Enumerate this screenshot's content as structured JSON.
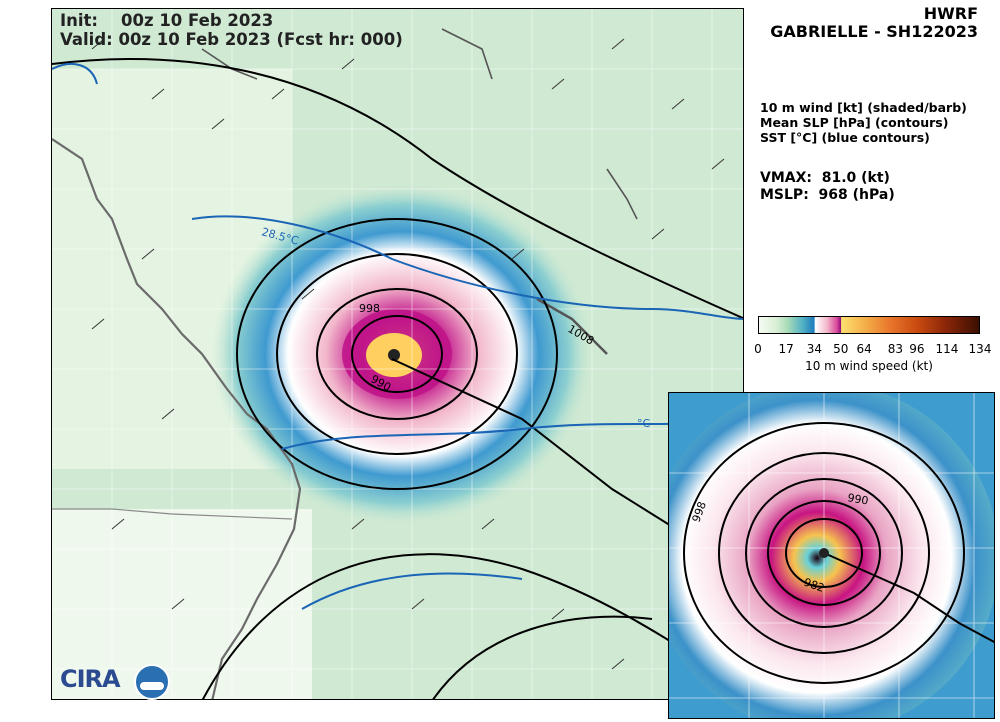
{
  "header": {
    "model": "HWRF",
    "storm": "GABRIELLE - SH122023",
    "init_line": "Init:    00z 10 Feb 2023",
    "valid_line": "Valid: 00z 10 Feb 2023 (Fcst hr: 000)"
  },
  "legend": {
    "line1": "10 m wind [kt] (shaded/barb)",
    "line2": "Mean SLP [hPa] (contours)",
    "line3": "SST [°C] (blue contours)"
  },
  "stats": {
    "vmax": "VMAX:  81.0 (kt)",
    "mslp": "MSLP:  968 (hPa)"
  },
  "colorbar": {
    "ticks": [
      "0",
      "17",
      "34",
      "50",
      "64",
      "83",
      "96",
      "114",
      "134"
    ],
    "label": "10 m wind speed (kt)",
    "colors": [
      "#f5fbf3",
      "#a9dbb8",
      "#1f7bbd",
      "#f2b7c9",
      "#8c0a78",
      "#ffe070",
      "#e8742a",
      "#3c0f02"
    ]
  },
  "map_labels": {
    "sst_28_5": "28.5°C",
    "slp_998": "998",
    "slp_990": "990",
    "slp_1008": "1008",
    "sst_partial": "°C"
  },
  "inset_labels": {
    "slp_998": "998",
    "slp_990": "990",
    "slp_982": "982"
  },
  "logo_text": "CIRA"
}
